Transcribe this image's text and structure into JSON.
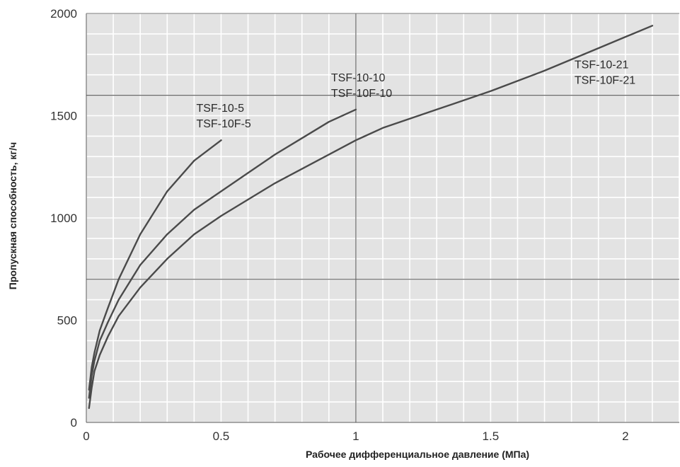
{
  "chart_data": {
    "type": "line",
    "title": "",
    "xlabel": "Рабочее дифференциальное давление (МПа)",
    "ylabel": "Пропускная способность, кг/ч",
    "xlim": [
      0,
      2.2
    ],
    "ylim": [
      0,
      2000
    ],
    "x_ticks": [
      {
        "value": 0,
        "label": "0"
      },
      {
        "value": 0.5,
        "label": "0.5"
      },
      {
        "value": 1,
        "label": "1"
      },
      {
        "value": 1.5,
        "label": "1.5"
      },
      {
        "value": 2,
        "label": "2"
      }
    ],
    "y_ticks": [
      {
        "value": 0,
        "label": "0"
      },
      {
        "value": 500,
        "label": "500"
      },
      {
        "value": 1000,
        "label": "1000"
      },
      {
        "value": 1500,
        "label": "1500"
      },
      {
        "value": 2000,
        "label": "2000"
      }
    ],
    "grid": {
      "minor_x_step": 0.1,
      "minor_y_step": 100,
      "major_x": [
        1.0
      ],
      "major_y": [
        700,
        1600
      ],
      "background": "#e3e3e3",
      "minor_color": "#ffffff",
      "major_color": "#666666"
    },
    "line_color": "#4a4a4a",
    "series": [
      {
        "label_lines": [
          "TSF-10-5",
          "TSF-10F-5"
        ],
        "x": [
          0.01,
          0.02,
          0.03,
          0.05,
          0.08,
          0.12,
          0.2,
          0.3,
          0.4,
          0.5
        ],
        "y": [
          160,
          270,
          340,
          450,
          560,
          700,
          920,
          1130,
          1280,
          1380
        ]
      },
      {
        "label_lines": [
          "TSF-10-10",
          "TSF-10F-10"
        ],
        "x": [
          0.01,
          0.02,
          0.03,
          0.05,
          0.08,
          0.12,
          0.2,
          0.3,
          0.4,
          0.5,
          0.6,
          0.7,
          0.8,
          0.9,
          1.0
        ],
        "y": [
          120,
          230,
          300,
          400,
          490,
          600,
          770,
          920,
          1040,
          1130,
          1220,
          1310,
          1390,
          1470,
          1530
        ]
      },
      {
        "label_lines": [
          "TSF-10-21",
          "TSF-10F-21"
        ],
        "x": [
          0.01,
          0.02,
          0.03,
          0.05,
          0.08,
          0.12,
          0.2,
          0.3,
          0.4,
          0.5,
          0.7,
          0.9,
          1.0,
          1.1,
          1.3,
          1.5,
          1.7,
          1.9,
          2.1
        ],
        "y": [
          70,
          170,
          250,
          330,
          420,
          520,
          660,
          800,
          920,
          1010,
          1170,
          1310,
          1380,
          1440,
          1530,
          1620,
          1720,
          1830,
          1940
        ]
      }
    ]
  }
}
